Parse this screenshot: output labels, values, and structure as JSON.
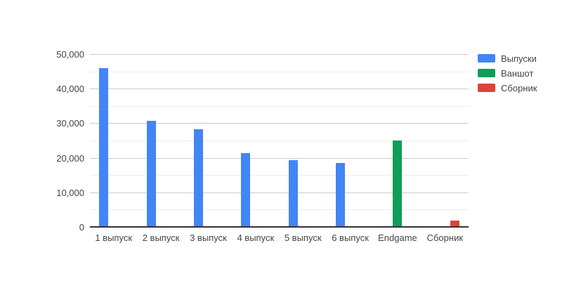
{
  "background_color": "#ffffff",
  "axis": {
    "label_color": "#444444",
    "major_gridline_color": "#cccccc",
    "minor_gridline_color": "#ebebeb",
    "baseline_color": "#333333"
  },
  "chart_data": {
    "type": "bar",
    "title": "",
    "xlabel": "",
    "ylabel": "",
    "categories": [
      "1 выпуск",
      "2 выпуск",
      "3 выпуск",
      "4 выпуск",
      "5 выпуск",
      "6 выпуск",
      "Endgame",
      "Сборник"
    ],
    "series": [
      {
        "name": "Выпуски",
        "color": "#4285f4",
        "values": [
          45900,
          30700,
          28200,
          21400,
          19300,
          18400,
          0,
          0
        ]
      },
      {
        "name": "Ваншот",
        "color": "#0f9d58",
        "values": [
          0,
          0,
          0,
          0,
          0,
          0,
          25000,
          0
        ]
      },
      {
        "name": "Сборник",
        "color": "#db4437",
        "values": [
          0,
          0,
          0,
          0,
          0,
          0,
          0,
          1800
        ]
      }
    ],
    "ylim": [
      0,
      50000
    ],
    "yticks": [
      0,
      10000,
      20000,
      30000,
      40000,
      50000
    ],
    "ytick_labels": [
      "0",
      "10,000",
      "20,000",
      "30,000",
      "40,000",
      "50,000"
    ],
    "minor_tick_step": 5000,
    "grid": true,
    "legend_position": "right"
  }
}
